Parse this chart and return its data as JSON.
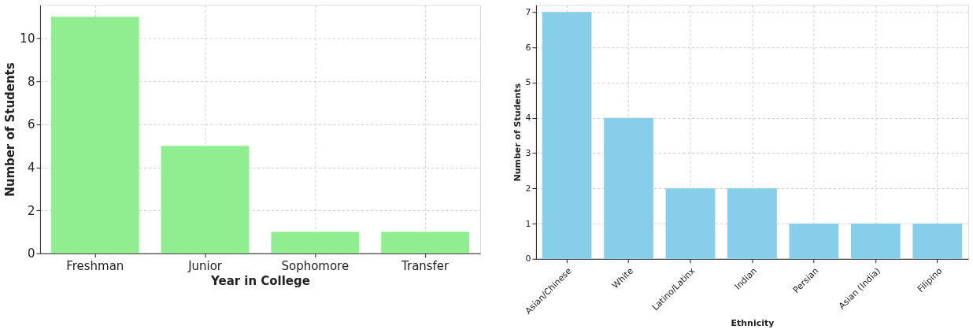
{
  "chart_data": [
    {
      "type": "bar",
      "xlabel": "Year in College",
      "ylabel": "Number of Students",
      "categories": [
        "Freshman",
        "Junior",
        "Sophomore",
        "Transfer"
      ],
      "values": [
        11,
        5,
        1,
        1
      ],
      "color": "#90ee90",
      "ylim": [
        0,
        11.55
      ],
      "yticks": [
        0,
        2,
        4,
        6,
        8,
        10
      ],
      "grid": true
    },
    {
      "type": "bar",
      "xlabel": "Ethnicity",
      "ylabel": "Number of Students",
      "categories": [
        "Asian/Chinese",
        "White",
        "Latino/Latinx",
        "Indian",
        "Persian",
        "Asian (India)",
        "Filipino"
      ],
      "values": [
        7,
        4,
        2,
        2,
        1,
        1,
        1
      ],
      "color": "#87ceeb",
      "ylim": [
        0,
        7.2
      ],
      "yticks": [
        0,
        1,
        2,
        3,
        4,
        5,
        6,
        7
      ],
      "grid": true
    }
  ]
}
